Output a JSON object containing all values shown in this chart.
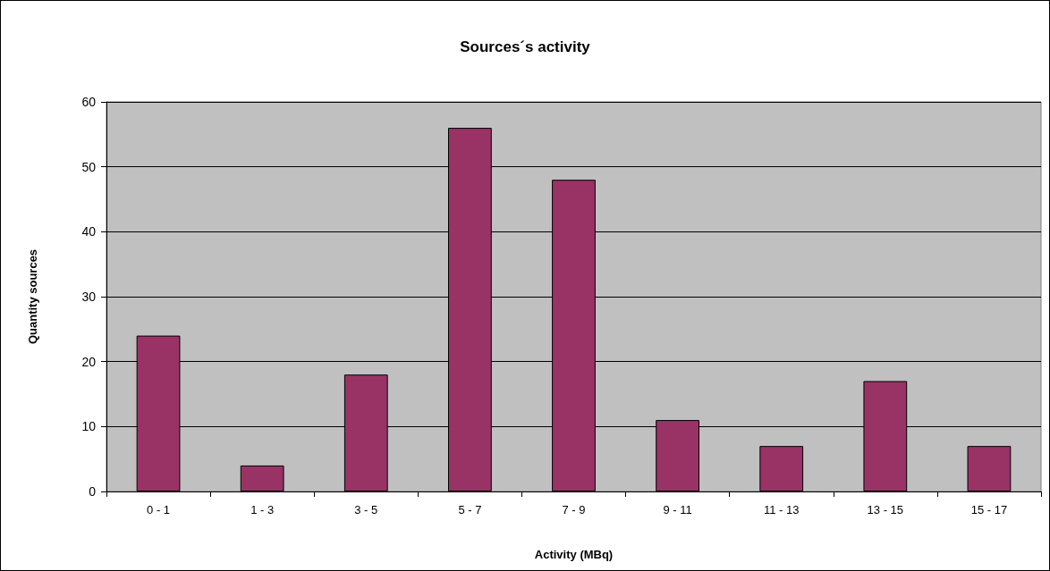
{
  "chart_data": {
    "type": "bar",
    "title": "Sources´s activity",
    "xlabel": "Activity (MBq)",
    "ylabel": "Quantity sources",
    "categories": [
      "0 - 1",
      "1 - 3",
      "3 - 5",
      "5 - 7",
      "7 - 9",
      "9 - 11",
      "11 - 13",
      "13 - 15",
      "15 - 17"
    ],
    "values": [
      24,
      4,
      18,
      56,
      48,
      11,
      7,
      17,
      7
    ],
    "color": "#993366",
    "ylim": [
      0,
      60
    ],
    "yticks": [
      0,
      10,
      20,
      30,
      40,
      50,
      60
    ],
    "grid": "y"
  }
}
